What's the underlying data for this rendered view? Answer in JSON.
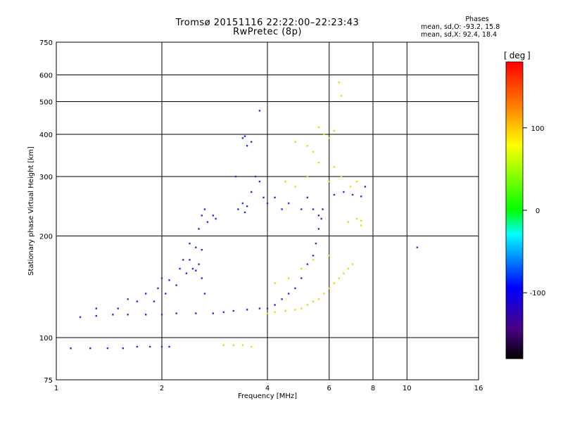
{
  "header": {
    "title_line1": "Tromsø 20151116 22:22:00–22:23:43",
    "title_line2": "RwPretec (8p)"
  },
  "phases": {
    "heading": "Phases",
    "line_o": "mean, sd,O: -93.2, 15.8",
    "line_x": "mean, sd,X:  92.4, 18.4"
  },
  "colorbar": {
    "unit": "deg",
    "ticks": [
      "100",
      "0",
      "-100"
    ],
    "range": [
      -180,
      180
    ]
  },
  "chart_data": {
    "type": "scatter",
    "xlabel": "Frequency [MHz]",
    "ylabel": "Stationary phase Virtual Height [km]",
    "x_scale": "log",
    "y_scale": "log",
    "xlim": [
      1,
      16
    ],
    "ylim": [
      75,
      750
    ],
    "x_ticks": [
      "1",
      "2",
      "4",
      "6",
      "8",
      "10",
      "16"
    ],
    "x_tick_values": [
      1,
      2,
      4,
      6,
      8,
      10,
      16
    ],
    "y_ticks": [
      "75",
      "100",
      "200",
      "300",
      "400",
      "500",
      "600",
      "750"
    ],
    "y_tick_values": [
      75,
      100,
      200,
      300,
      400,
      500,
      600,
      750
    ],
    "grid": true,
    "series": [
      {
        "name": "O",
        "phase_mean": -93.2,
        "phase_sd": 15.8,
        "points": [
          [
            1.1,
            93
          ],
          [
            1.25,
            93
          ],
          [
            1.4,
            93
          ],
          [
            1.55,
            93
          ],
          [
            1.7,
            94
          ],
          [
            1.85,
            94
          ],
          [
            2.0,
            94
          ],
          [
            2.1,
            94
          ],
          [
            1.17,
            115
          ],
          [
            1.3,
            116
          ],
          [
            1.45,
            117
          ],
          [
            1.6,
            117
          ],
          [
            1.8,
            117
          ],
          [
            2.0,
            117
          ],
          [
            2.2,
            118
          ],
          [
            2.5,
            118
          ],
          [
            2.8,
            118
          ],
          [
            3.0,
            119
          ],
          [
            3.2,
            120
          ],
          [
            3.5,
            121
          ],
          [
            3.8,
            122
          ],
          [
            1.3,
            122
          ],
          [
            1.5,
            122
          ],
          [
            1.6,
            130
          ],
          [
            1.7,
            128
          ],
          [
            1.8,
            135
          ],
          [
            1.9,
            128
          ],
          [
            1.95,
            140
          ],
          [
            2.0,
            150
          ],
          [
            2.05,
            135
          ],
          [
            2.1,
            148
          ],
          [
            2.2,
            143
          ],
          [
            2.25,
            160
          ],
          [
            2.3,
            170
          ],
          [
            2.35,
            155
          ],
          [
            2.4,
            170
          ],
          [
            2.45,
            160
          ],
          [
            2.5,
            158
          ],
          [
            2.55,
            165
          ],
          [
            2.6,
            150
          ],
          [
            2.65,
            135
          ],
          [
            2.4,
            190
          ],
          [
            2.5,
            185
          ],
          [
            2.6,
            182
          ],
          [
            2.55,
            210
          ],
          [
            2.6,
            230
          ],
          [
            2.65,
            240
          ],
          [
            2.7,
            220
          ],
          [
            2.8,
            230
          ],
          [
            2.85,
            225
          ],
          [
            3.25,
            300
          ],
          [
            3.3,
            240
          ],
          [
            3.4,
            250
          ],
          [
            3.45,
            235
          ],
          [
            3.5,
            245
          ],
          [
            3.6,
            270
          ],
          [
            3.7,
            300
          ],
          [
            3.8,
            290
          ],
          [
            3.4,
            390
          ],
          [
            3.5,
            370
          ],
          [
            3.6,
            380
          ],
          [
            3.45,
            395
          ],
          [
            3.9,
            260
          ],
          [
            4.0,
            250
          ],
          [
            4.2,
            260
          ],
          [
            4.4,
            240
          ],
          [
            4.6,
            250
          ],
          [
            5.0,
            240
          ],
          [
            5.2,
            260
          ],
          [
            5.4,
            240
          ],
          [
            5.6,
            230
          ],
          [
            4.0,
            122
          ],
          [
            4.2,
            125
          ],
          [
            4.4,
            130
          ],
          [
            4.6,
            135
          ],
          [
            4.8,
            140
          ],
          [
            5.0,
            150
          ],
          [
            5.2,
            165
          ],
          [
            5.4,
            175
          ],
          [
            5.5,
            190
          ],
          [
            5.6,
            210
          ],
          [
            5.7,
            225
          ],
          [
            5.75,
            240
          ],
          [
            6.2,
            265
          ],
          [
            6.6,
            270
          ],
          [
            7.0,
            265
          ],
          [
            7.4,
            262
          ],
          [
            7.6,
            280
          ],
          [
            3.8,
            470
          ],
          [
            10.7,
            185
          ]
        ]
      },
      {
        "name": "X",
        "phase_mean": 92.4,
        "phase_sd": 18.4,
        "points": [
          [
            3.0,
            95
          ],
          [
            3.2,
            95
          ],
          [
            3.4,
            95
          ],
          [
            3.6,
            94
          ],
          [
            4.0,
            118
          ],
          [
            4.2,
            119
          ],
          [
            4.5,
            120
          ],
          [
            4.8,
            121
          ],
          [
            5.0,
            122
          ],
          [
            5.2,
            125
          ],
          [
            5.4,
            128
          ],
          [
            5.6,
            130
          ],
          [
            5.8,
            135
          ],
          [
            6.0,
            140
          ],
          [
            6.2,
            145
          ],
          [
            6.4,
            150
          ],
          [
            6.6,
            155
          ],
          [
            6.8,
            160
          ],
          [
            7.0,
            165
          ],
          [
            4.2,
            145
          ],
          [
            4.6,
            150
          ],
          [
            5.0,
            160
          ],
          [
            5.4,
            170
          ],
          [
            6.0,
            175
          ],
          [
            4.5,
            290
          ],
          [
            4.8,
            280
          ],
          [
            5.2,
            300
          ],
          [
            5.6,
            330
          ],
          [
            6.0,
            290
          ],
          [
            6.2,
            320
          ],
          [
            6.5,
            300
          ],
          [
            6.9,
            280
          ],
          [
            7.2,
            290
          ],
          [
            4.8,
            380
          ],
          [
            5.2,
            370
          ],
          [
            5.4,
            355
          ],
          [
            5.6,
            420
          ],
          [
            5.8,
            400
          ],
          [
            6.0,
            390
          ],
          [
            6.2,
            410
          ],
          [
            6.4,
            570
          ],
          [
            6.5,
            520
          ],
          [
            6.8,
            220
          ],
          [
            7.2,
            225
          ],
          [
            7.4,
            215
          ],
          [
            7.4,
            222
          ]
        ]
      }
    ]
  }
}
